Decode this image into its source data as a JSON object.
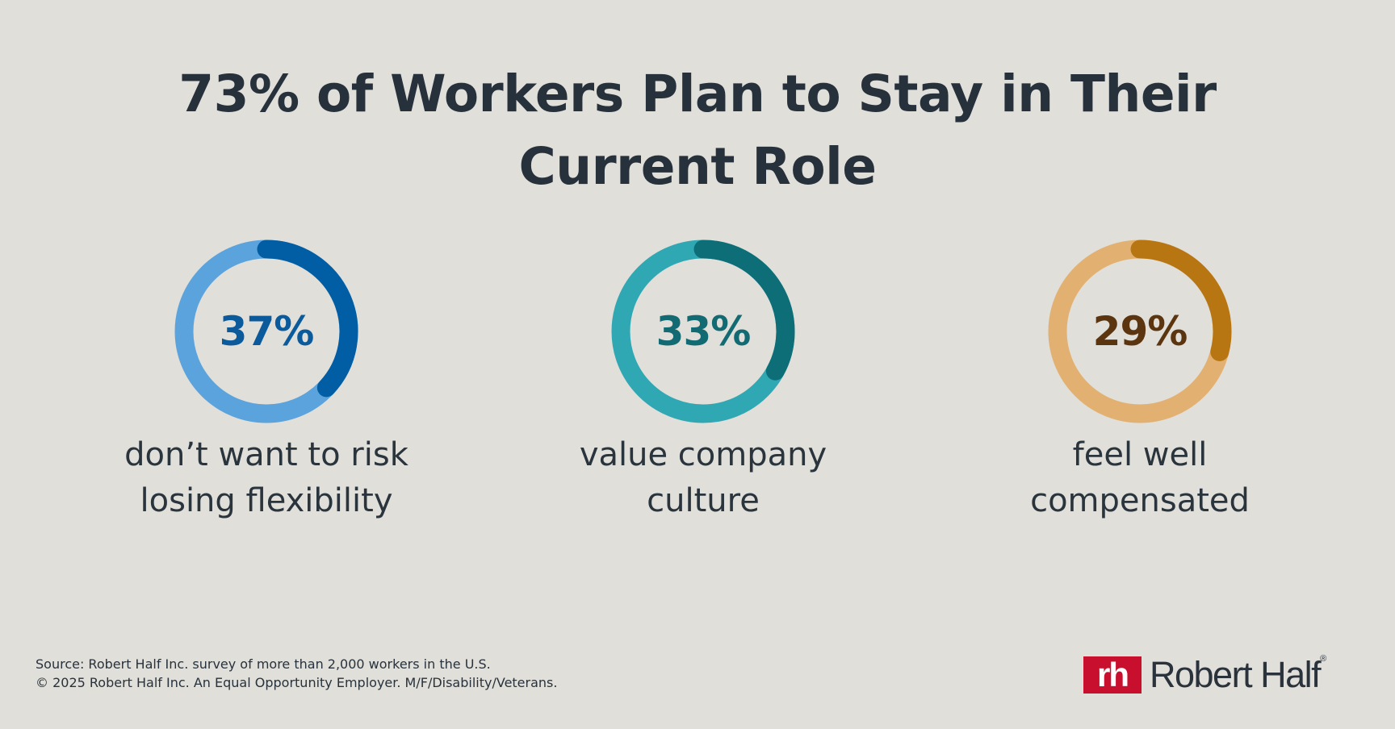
{
  "title": {
    "line1": "73% of Workers Plan to Stay in Their",
    "line2": "Current Role"
  },
  "chart_data": {
    "type": "donut",
    "series": [
      {
        "value_label": "37%",
        "value": 37,
        "caption_line1": "don’t want to risk",
        "caption_line2": "losing flexibility",
        "track_color": "#5ba3dc",
        "arc_color": "#015ea4",
        "text_color": "#0a5a9c"
      },
      {
        "value_label": "33%",
        "value": 33,
        "caption_line1": "value company",
        "caption_line2": "culture",
        "track_color": "#2fa8b4",
        "arc_color": "#0e6e77",
        "text_color": "#126a72"
      },
      {
        "value_label": "29%",
        "value": 29,
        "caption_line1": "feel well",
        "caption_line2": "compensated",
        "track_color": "#e2b172",
        "arc_color": "#b87612",
        "text_color": "#5b3510"
      }
    ]
  },
  "footer": {
    "source": "Source: Robert Half Inc. survey of more than 2,000 workers in the U.S.",
    "copyright": "© 2025 Robert Half Inc. An Equal Opportunity Employer. M/F/Disability/Veterans."
  },
  "logo": {
    "mark": "rh",
    "name": "Robert Half",
    "registered": "®",
    "color": "#c8102e"
  }
}
